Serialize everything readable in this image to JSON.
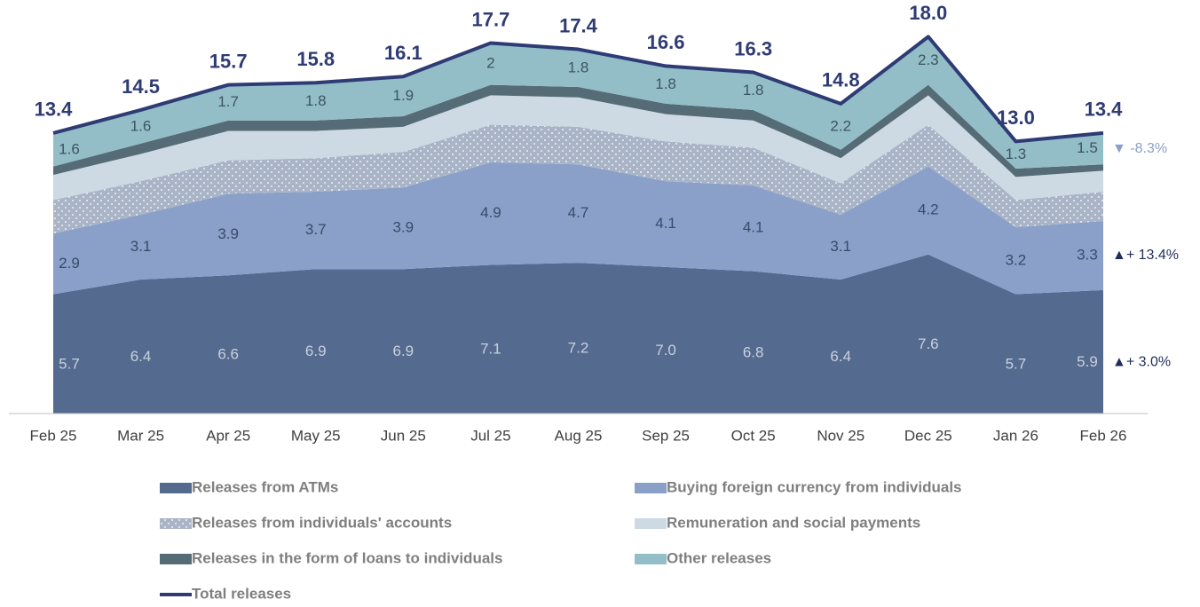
{
  "chart_data": {
    "type": "stacked_area",
    "categories": [
      "Feb 25",
      "Mar 25",
      "Apr 25",
      "May 25",
      "Jun 25",
      "Jul 25",
      "Aug 25",
      "Sep 25",
      "Oct 25",
      "Nov 25",
      "Dec 25",
      "Jan 26",
      "Feb 26"
    ],
    "ylim": [
      0,
      19.5
    ],
    "series": [
      {
        "name": "Releases from ATMs",
        "color": "#546a8f",
        "label_color": "#c9d1de",
        "values": [
          5.7,
          6.4,
          6.6,
          6.9,
          6.9,
          7.1,
          7.2,
          7.0,
          6.8,
          6.4,
          7.6,
          5.7,
          5.9
        ],
        "value_labels": [
          "5.7",
          "6.4",
          "6.6",
          "6.9",
          "6.9",
          "7.1",
          "7.2",
          "7.0",
          "6.8",
          "6.4",
          "7.6",
          "5.7",
          "5.9"
        ],
        "change": "▲+ 3.0%",
        "change_color": "#1f2d5c"
      },
      {
        "name": "Buying foreign currency from individuals",
        "color": "#8aa0c8",
        "label_color": "#3a4a6a",
        "data_labels": true,
        "values": [
          2.9,
          3.1,
          3.9,
          3.7,
          3.9,
          4.9,
          4.7,
          4.1,
          4.1,
          3.1,
          4.2,
          3.2,
          3.3
        ],
        "change": "▲+ 13.4%",
        "change_color": "#1f2d5c"
      },
      {
        "name": "Releases from individuals' accounts",
        "color": "#a9b4c7",
        "pattern": "dots",
        "values": [
          1.6,
          1.6,
          1.6,
          1.6,
          1.7,
          1.8,
          1.8,
          1.9,
          1.8,
          1.5,
          2.0,
          1.3,
          1.4
        ]
      },
      {
        "name": "Remuneration and social payments",
        "color": "#cdd9e3",
        "values": [
          1.2,
          1.3,
          1.4,
          1.3,
          1.2,
          1.4,
          1.4,
          1.3,
          1.3,
          1.2,
          1.4,
          1.1,
          1.0
        ]
      },
      {
        "name": "Releases in the form of loans to individuals",
        "color": "#556c77",
        "values": [
          0.4,
          0.5,
          0.5,
          0.5,
          0.5,
          0.5,
          0.5,
          0.5,
          0.5,
          0.4,
          0.5,
          0.4,
          0.3
        ]
      },
      {
        "name": "Other releases",
        "color": "#93bec7",
        "label_color": "#3d5560",
        "data_labels": true,
        "values": [
          1.6,
          1.6,
          1.7,
          1.8,
          1.9,
          2.0,
          1.8,
          1.8,
          1.8,
          2.2,
          2.3,
          1.3,
          1.5
        ],
        "change": "▼ -8.3%",
        "change_color": "#8aa0c8"
      }
    ],
    "total": {
      "name": "Total releases",
      "color": "#2e3b74",
      "values": [
        13.4,
        14.5,
        15.7,
        15.8,
        16.1,
        17.7,
        17.4,
        16.6,
        16.3,
        14.8,
        18.0,
        13.0,
        13.4
      ],
      "value_labels": [
        "13.4",
        "14.5",
        "15.7",
        "15.8",
        "16.1",
        "17.7",
        "17.4",
        "16.6",
        "16.3",
        "14.8",
        "18.0",
        "13.0",
        "13.4"
      ]
    }
  }
}
